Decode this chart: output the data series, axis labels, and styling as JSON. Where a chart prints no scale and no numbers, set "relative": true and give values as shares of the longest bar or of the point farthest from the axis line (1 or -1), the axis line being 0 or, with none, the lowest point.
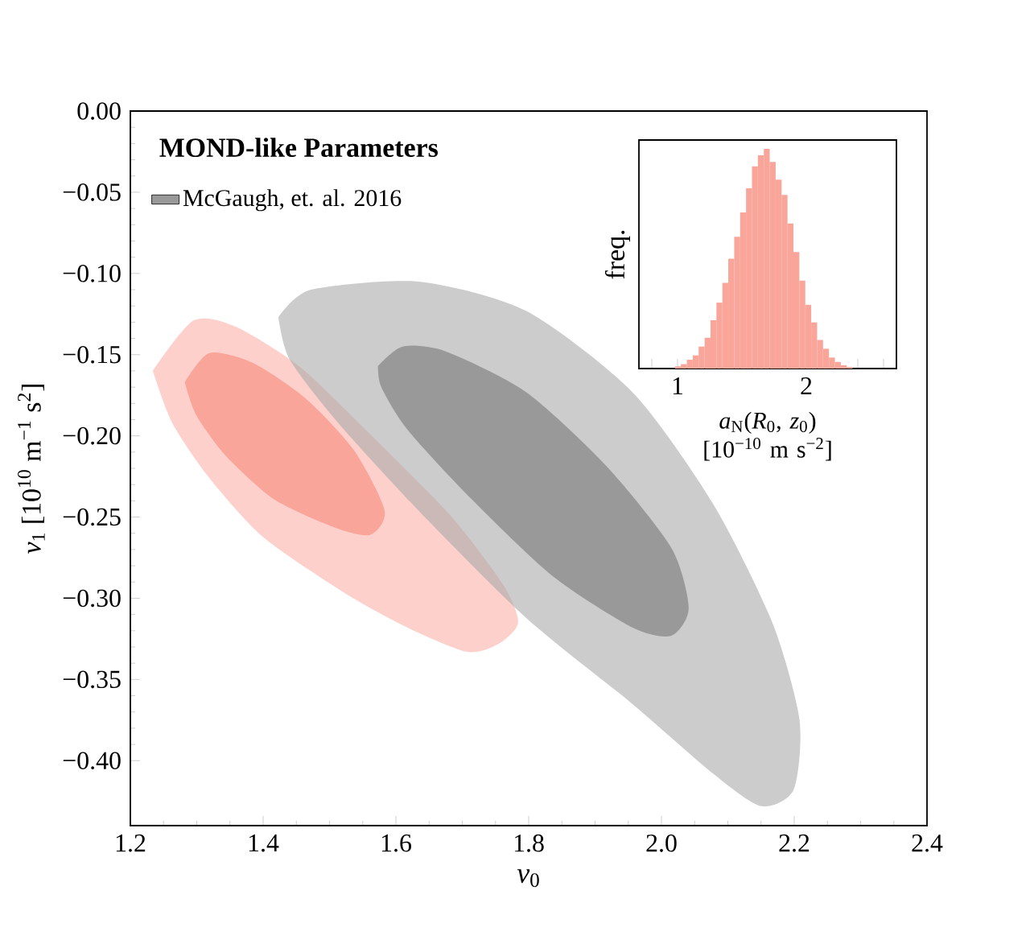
{
  "chart_data": [
    {
      "type": "area",
      "xlabel": "*ν*$_{0}$",
      "ylabel": "*ν*$_{1}$ [10$^{10}$ m$^{−1}$ s$^{2}$]",
      "legend_title": "MOND-like Parameters",
      "legend": "top left",
      "grid": false,
      "xlim": [
        1.2,
        2.4
      ],
      "ylim": [
        -0.44,
        0.0
      ],
      "xticks": [
        {
          "value": 1.2,
          "label": "1.2"
        },
        {
          "value": 1.4,
          "label": "1.4"
        },
        {
          "value": 1.6,
          "label": "1.6"
        },
        {
          "value": 1.8,
          "label": "1.8"
        },
        {
          "value": 2.0,
          "label": "2.0"
        },
        {
          "value": 2.2,
          "label": "2.2"
        },
        {
          "value": 2.4,
          "label": "2.4"
        }
      ],
      "yticks": [
        {
          "value": -0.4,
          "label": "−0.40"
        },
        {
          "value": -0.35,
          "label": "−0.35"
        },
        {
          "value": -0.3,
          "label": "−0.30"
        },
        {
          "value": -0.25,
          "label": "−0.25"
        },
        {
          "value": -0.2,
          "label": "−0.20"
        },
        {
          "value": -0.15,
          "label": "−0.15"
        },
        {
          "value": -0.1,
          "label": "−0.10"
        },
        {
          "value": -0.05,
          "label": "−0.05"
        },
        {
          "value": 0.0,
          "label": "0.00"
        }
      ],
      "series": [
        {
          "color": "#cccccc",
          "x": [
            1.423,
            1.472,
            1.634,
            1.796,
            1.956,
            2.078,
            2.167,
            2.208,
            2.199,
            2.15,
            2.078,
            1.956,
            1.796,
            1.634,
            1.513,
            1.44
          ],
          "values": [
            -0.127,
            -0.11,
            -0.105,
            -0.123,
            -0.173,
            -0.242,
            -0.315,
            -0.375,
            -0.418,
            -0.428,
            -0.408,
            -0.365,
            -0.312,
            -0.246,
            -0.192,
            -0.153
          ]
        },
        {
          "name": "McGaugh, et. al. 2016",
          "color": "#999999",
          "x": [
            1.573,
            1.61,
            1.675,
            1.796,
            1.918,
            2.015,
            2.041,
            2.015,
            1.956,
            1.835,
            1.714,
            1.617,
            1.578
          ],
          "values": [
            -0.157,
            -0.145,
            -0.148,
            -0.173,
            -0.219,
            -0.269,
            -0.306,
            -0.323,
            -0.318,
            -0.286,
            -0.239,
            -0.196,
            -0.17
          ]
        },
        {
          "color": "#fdd0cb",
          "x": [
            1.234,
            1.295,
            1.36,
            1.457,
            1.561,
            1.682,
            1.762,
            1.784,
            1.755,
            1.707,
            1.617,
            1.52,
            1.399,
            1.319,
            1.263
          ],
          "values": [
            -0.16,
            -0.129,
            -0.133,
            -0.158,
            -0.199,
            -0.249,
            -0.292,
            -0.315,
            -0.328,
            -0.333,
            -0.318,
            -0.296,
            -0.262,
            -0.226,
            -0.192
          ]
        },
        {
          "color": "#f9a59a",
          "x": [
            1.282,
            1.319,
            1.384,
            1.464,
            1.537,
            1.583,
            1.561,
            1.505,
            1.416,
            1.343,
            1.299
          ],
          "values": [
            -0.167,
            -0.149,
            -0.155,
            -0.177,
            -0.209,
            -0.246,
            -0.261,
            -0.256,
            -0.239,
            -0.212,
            -0.187
          ]
        }
      ]
    },
    {
      "type": "bar",
      "xlabel": "*a*$_{N}$(*R*$_{0}$, *z*$_{0}$) [10$^{−10}$ m s$^{−2}$]",
      "ylabel": "freq.",
      "relative": true,
      "tick_labels": "x",
      "color": "#f9a59a",
      "xlim": [
        0.7,
        2.7
      ],
      "xticks": [
        {
          "value": 0.8,
          "label": null
        },
        {
          "value": 1,
          "label": "1"
        },
        {
          "value": 1.2,
          "label": null
        },
        {
          "value": 1.4,
          "label": null
        },
        {
          "value": 1.6,
          "label": null
        },
        {
          "value": 1.8,
          "label": null
        },
        {
          "value": 2,
          "label": "2"
        },
        {
          "value": 2.2,
          "label": null
        },
        {
          "value": 2.4,
          "label": null
        },
        {
          "value": 2.6,
          "label": null
        }
      ],
      "x": [
        1.003,
        1.049,
        1.095,
        1.141,
        1.187,
        1.233,
        1.279,
        1.325,
        1.371,
        1.417,
        1.463,
        1.509,
        1.555,
        1.601,
        1.647,
        1.693,
        1.739,
        1.785,
        1.831,
        1.877,
        1.923,
        1.969,
        2.015,
        2.061,
        2.107,
        2.153,
        2.199,
        2.245,
        2.291,
        2.337
      ],
      "values": [
        0.01,
        0.02,
        0.04,
        0.06,
        0.1,
        0.14,
        0.22,
        0.3,
        0.39,
        0.5,
        0.6,
        0.71,
        0.82,
        0.92,
        0.97,
        1.0,
        0.94,
        0.86,
        0.79,
        0.66,
        0.53,
        0.4,
        0.29,
        0.21,
        0.13,
        0.09,
        0.05,
        0.03,
        0.015,
        0.007
      ]
    }
  ]
}
